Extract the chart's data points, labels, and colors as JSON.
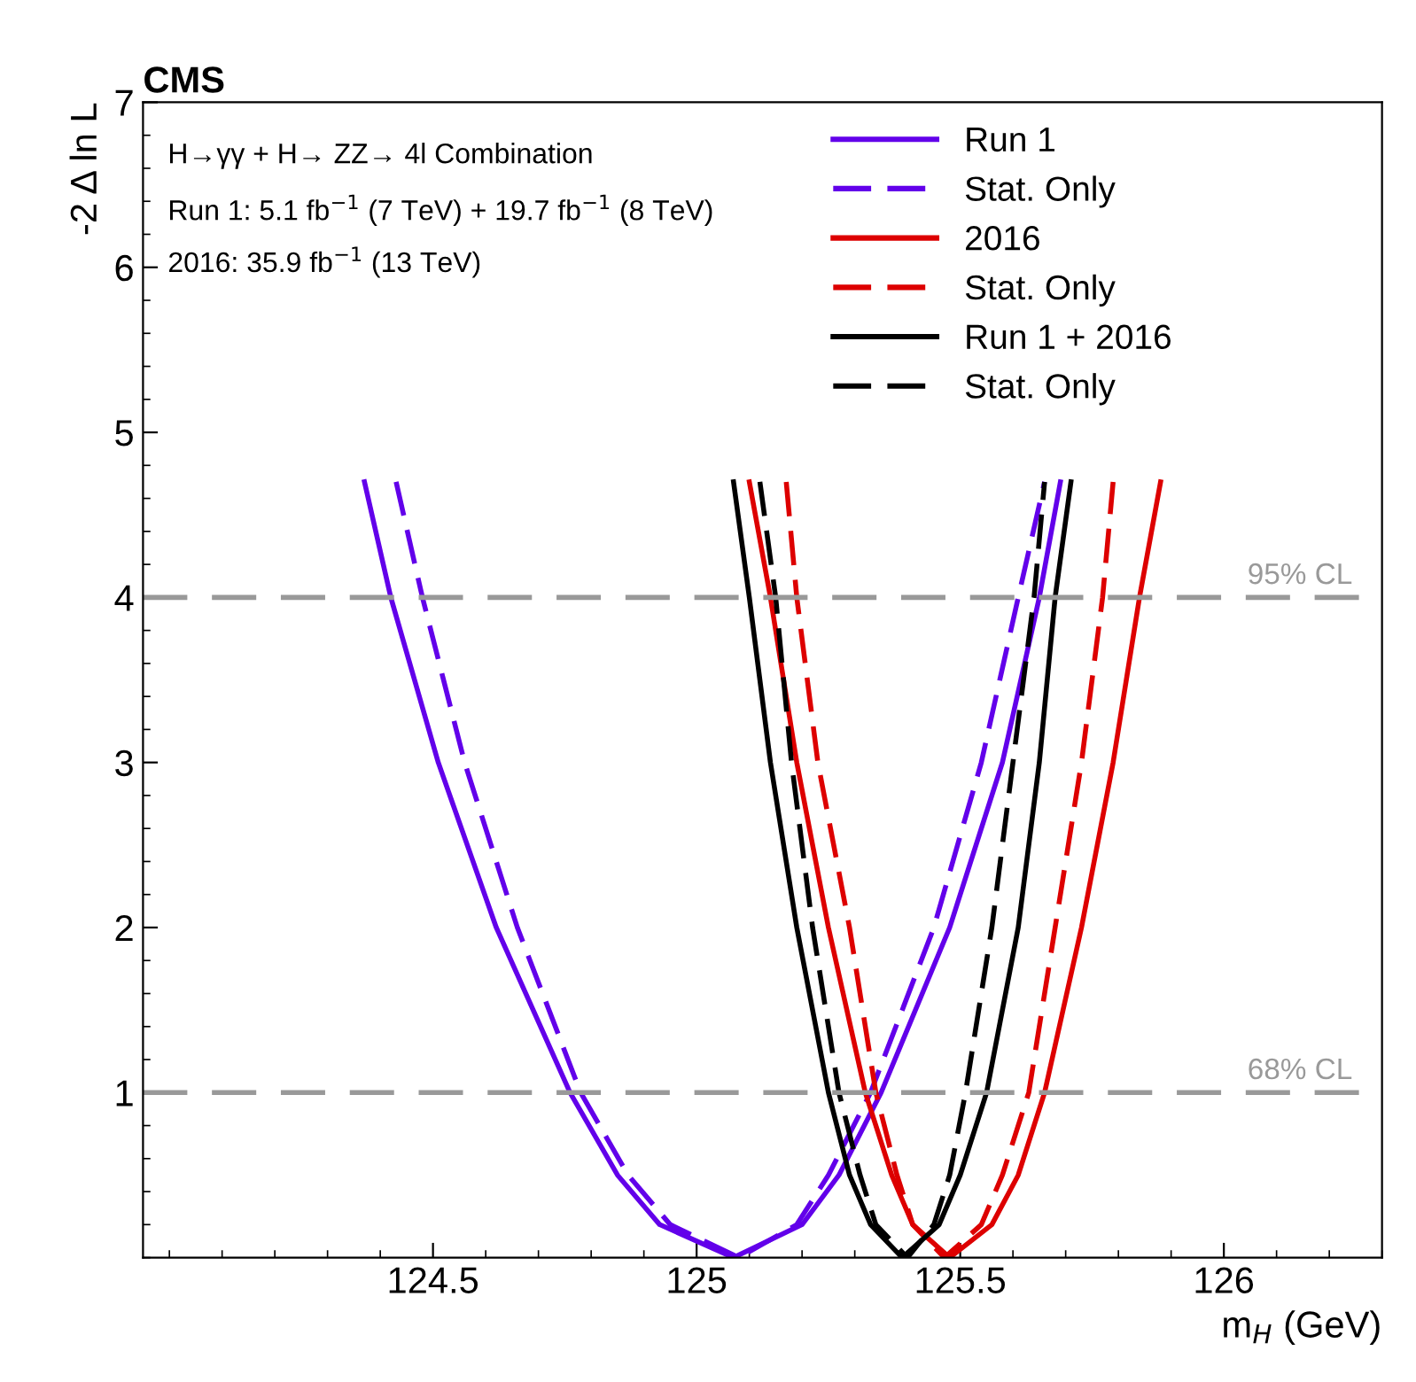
{
  "chart_data": {
    "type": "line",
    "title": "CMS",
    "xlabel": "m$_{H}$ (GeV)",
    "ylabel": "-2 Δ ln L",
    "annotations": [
      "H→γγ + H→ ZZ→ 4l Combination",
      "Run 1: 5.1 fb$^{−1}$ (7 TeV) + 19.7 fb$^{−1}$ (8 TeV)",
      "2016: 35.9 fb$^{−1}$ (13 TeV)"
    ],
    "xlim": [
      123.95,
      126.3
    ],
    "xticks": [
      124.5,
      125,
      125.5,
      126
    ],
    "ylim": [
      0,
      7
    ],
    "yticks": [
      1,
      2,
      3,
      4,
      5,
      6,
      7
    ],
    "grid": false,
    "legend": "top right",
    "marker": "none",
    "ref_lines": [
      {
        "axis": "y",
        "value": 4,
        "label": "95% CL",
        "color": "#999999",
        "line_style": "dashed"
      },
      {
        "axis": "y",
        "value": 1,
        "label": "68% CL",
        "color": "#999999",
        "line_style": "dashed"
      }
    ],
    "series": [
      {
        "name": "Run 1",
        "color": "#6200ea",
        "line_style": "solid",
        "x": [
          124.37,
          124.42,
          124.51,
          124.62,
          124.76,
          124.85,
          124.93,
          125.07,
          125.2,
          125.27,
          125.35,
          125.48,
          125.58,
          125.65,
          125.69
        ],
        "values": [
          4.7,
          4,
          3,
          2,
          1,
          0.5,
          0.2,
          0,
          0.2,
          0.5,
          1,
          2,
          3,
          4,
          4.7
        ]
      },
      {
        "name": "Stat. Only",
        "color": "#6200ea",
        "line_style": "dashed",
        "x": [
          124.43,
          124.48,
          124.56,
          124.66,
          124.78,
          124.87,
          124.95,
          125.08,
          125.19,
          125.25,
          125.33,
          125.45,
          125.54,
          125.61,
          125.66
        ],
        "values": [
          4.7,
          4,
          3,
          2,
          1,
          0.5,
          0.2,
          0,
          0.2,
          0.5,
          1,
          2,
          3,
          4,
          4.7
        ]
      },
      {
        "name": "2016",
        "color": "#dd0000",
        "line_style": "solid",
        "x": [
          125.1,
          125.14,
          125.19,
          125.25,
          125.32,
          125.37,
          125.41,
          125.48,
          125.56,
          125.61,
          125.66,
          125.73,
          125.79,
          125.84,
          125.88
        ],
        "values": [
          4.7,
          4,
          3,
          2,
          1,
          0.5,
          0.2,
          0,
          0.2,
          0.5,
          1,
          2,
          3,
          4,
          4.7
        ]
      },
      {
        "name": "Stat. Only",
        "color": "#dd0000",
        "line_style": "dashed",
        "x": [
          125.17,
          125.19,
          125.23,
          125.29,
          125.34,
          125.38,
          125.41,
          125.47,
          125.54,
          125.58,
          125.63,
          125.68,
          125.73,
          125.77,
          125.79
        ],
        "values": [
          4.7,
          4,
          3,
          2,
          1,
          0.5,
          0.2,
          0,
          0.2,
          0.5,
          1,
          2,
          3,
          4,
          4.7
        ]
      },
      {
        "name": "Run 1 + 2016",
        "color": "#000000",
        "line_style": "solid",
        "x": [
          125.07,
          125.1,
          125.14,
          125.19,
          125.25,
          125.29,
          125.33,
          125.39,
          125.46,
          125.5,
          125.55,
          125.61,
          125.65,
          125.68,
          125.71
        ],
        "values": [
          4.7,
          4,
          3,
          2,
          1,
          0.5,
          0.2,
          0,
          0.2,
          0.5,
          1,
          2,
          3,
          4,
          4.7
        ]
      },
      {
        "name": "Stat. Only",
        "color": "#000000",
        "line_style": "dashed",
        "x": [
          125.12,
          125.15,
          125.18,
          125.22,
          125.27,
          125.31,
          125.34,
          125.4,
          125.45,
          125.48,
          125.51,
          125.56,
          125.6,
          125.64,
          125.66
        ],
        "values": [
          4.7,
          4,
          3,
          2,
          1,
          0.5,
          0.2,
          0,
          0.2,
          0.5,
          1,
          2,
          3,
          4,
          4.7
        ]
      }
    ]
  }
}
